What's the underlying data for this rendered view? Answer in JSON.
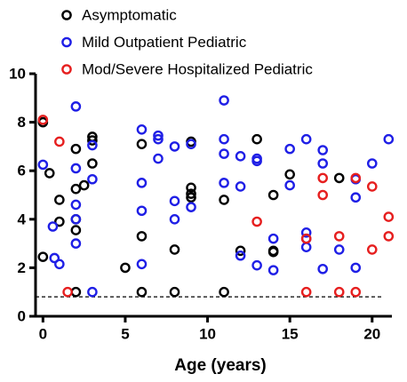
{
  "chart_data": {
    "type": "scatter",
    "x_label": "Age (years)",
    "xlim": [
      -0.45,
      21.2
    ],
    "ylim": [
      0,
      10
    ],
    "xticks": [
      0,
      5,
      10,
      15,
      20
    ],
    "yticks": [
      0,
      2,
      4,
      6,
      8,
      10
    ],
    "threshold": 0.8,
    "series": [
      {
        "name": "Asymptomatic",
        "color": "#000000",
        "x": [
          0,
          0,
          0.4,
          1,
          1,
          2,
          2,
          2,
          2,
          2.5,
          3,
          3,
          3,
          2,
          5,
          6,
          6,
          6,
          8,
          8,
          9,
          9,
          9,
          9,
          11,
          11,
          12,
          13,
          14,
          14,
          14,
          15,
          18
        ],
        "values": [
          8.0,
          2.45,
          5.9,
          3.9,
          4.8,
          4.0,
          3.55,
          5.25,
          6.9,
          5.4,
          7.4,
          7.25,
          6.3,
          1.0,
          2.0,
          7.1,
          3.3,
          1.0,
          2.75,
          1.0,
          7.2,
          5.3,
          5.05,
          4.9,
          4.8,
          1.0,
          2.7,
          7.3,
          2.7,
          2.65,
          5.0,
          5.85,
          5.7
        ]
      },
      {
        "name": "Mild Outpatient Pediatric",
        "color": "#1f1fe6",
        "x": [
          0,
          0.6,
          0.7,
          1,
          2,
          2,
          2,
          2,
          2,
          3,
          3,
          3,
          6,
          6,
          6,
          6,
          7,
          7,
          7,
          8,
          8,
          8,
          9,
          9,
          11,
          11,
          11,
          11,
          12,
          12,
          12,
          13,
          13,
          13,
          14,
          14,
          15,
          15,
          16,
          16,
          16,
          16,
          17,
          17,
          17,
          18,
          19,
          19,
          19,
          20,
          21
        ],
        "values": [
          6.25,
          3.7,
          2.4,
          2.15,
          8.65,
          6.1,
          4.6,
          4.0,
          3.0,
          7.05,
          5.65,
          1.0,
          7.7,
          5.5,
          4.35,
          2.15,
          7.45,
          7.3,
          6.5,
          7.0,
          4.75,
          4.0,
          7.1,
          4.5,
          8.9,
          7.3,
          6.7,
          5.5,
          6.6,
          5.35,
          2.5,
          6.5,
          6.4,
          2.1,
          3.2,
          1.9,
          6.9,
          5.4,
          7.3,
          3.45,
          3.2,
          2.85,
          6.85,
          6.3,
          1.95,
          2.75,
          5.65,
          4.9,
          2.0,
          6.3,
          7.3
        ]
      },
      {
        "name": "Mod/Severe Hospitalized Pediatric",
        "color": "#e61f1f",
        "x": [
          0,
          1,
          1.5,
          13,
          16,
          16,
          17,
          17,
          18,
          18,
          19,
          19,
          20,
          20,
          21,
          21
        ],
        "values": [
          8.1,
          7.2,
          1.0,
          3.9,
          3.2,
          1.0,
          5.7,
          5.0,
          3.3,
          1.0,
          5.7,
          1.0,
          5.35,
          2.75,
          4.1,
          3.3
        ]
      }
    ]
  }
}
